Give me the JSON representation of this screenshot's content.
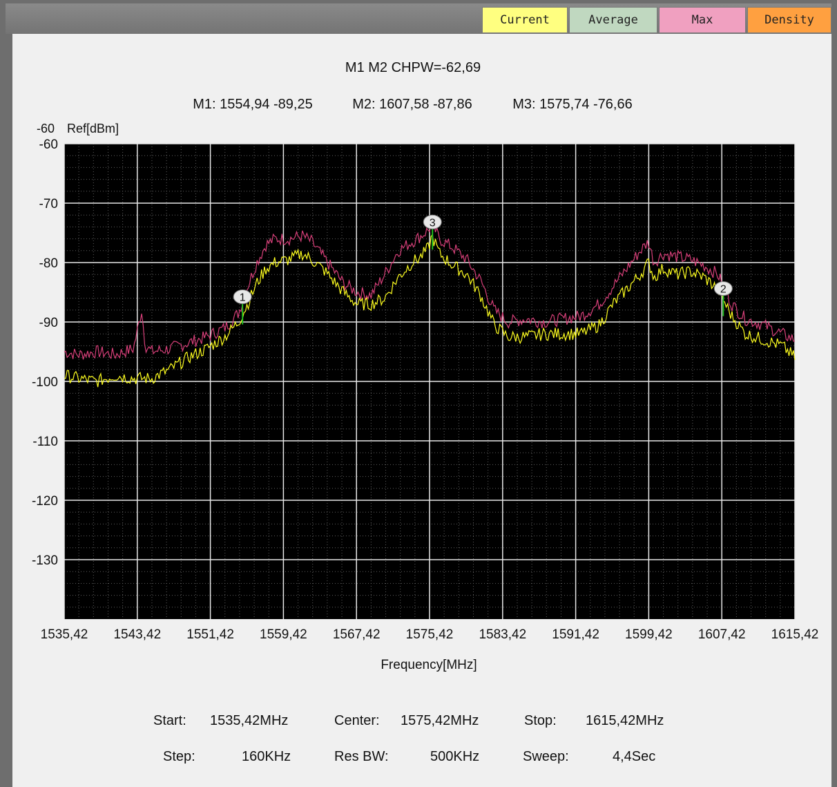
{
  "tabs": [
    {
      "label": "Current",
      "color": "#ffff80"
    },
    {
      "label": "Average",
      "color": "#c0d8c0"
    },
    {
      "label": "Max",
      "color": "#f0a0c0"
    },
    {
      "label": "Density",
      "color": "#ffa040"
    }
  ],
  "header": {
    "line1": "M1 M2  CHPW=-62,69",
    "m1": "M1: 1554,94 -89,25",
    "m2": "M2: 1607,58 -87,86",
    "m3": "M3: 1575,74 -76,66"
  },
  "ref": {
    "value": "-60",
    "label": "Ref[dBm]"
  },
  "settings": {
    "start_label": "Start:",
    "start_value": "1535,42MHz",
    "center_label": "Center:",
    "center_value": "1575,42MHz",
    "stop_label": "Stop:",
    "stop_value": "1615,42MHz",
    "step_label": "Step:",
    "step_value": "160KHz",
    "resbw_label": "Res BW:",
    "resbw_value": "500KHz",
    "sweep_label": "Sweep:",
    "sweep_value": "4,4Sec"
  },
  "chart_data": {
    "type": "line",
    "xlabel": "Frequency[MHz]",
    "ylabel": "Ref[dBm]",
    "xlim": [
      1535.42,
      1615.42
    ],
    "ylim": [
      -140,
      -60
    ],
    "x_ticks": [
      1535.42,
      1543.42,
      1551.42,
      1559.42,
      1567.42,
      1575.42,
      1583.42,
      1591.42,
      1599.42,
      1607.42,
      1615.42
    ],
    "x_tick_labels": [
      "1535,42",
      "1543,42",
      "1551,42",
      "1559,42",
      "1567,42",
      "1575,42",
      "1583,42",
      "1591,42",
      "1599,42",
      "1607,42",
      "1615,42"
    ],
    "y_ticks": [
      -60,
      -70,
      -80,
      -90,
      -100,
      -110,
      -120,
      -130
    ],
    "y_tick_labels": [
      "-60",
      "-70",
      "-80",
      "-90",
      "-100",
      "-110",
      "-120",
      "-130"
    ],
    "grid": true,
    "background": "#000000",
    "series": [
      {
        "color": "#d8407a",
        "x": [
          1535.42,
          1537,
          1539,
          1541,
          1543,
          1543.9,
          1544.3,
          1545,
          1547,
          1549,
          1551,
          1553,
          1554.5,
          1555.5,
          1556.5,
          1557.5,
          1558.5,
          1560,
          1561.5,
          1562.5,
          1564,
          1566,
          1567.5,
          1569,
          1570.5,
          1572,
          1573.5,
          1574.5,
          1575.3,
          1575.7,
          1576.5,
          1578,
          1579.5,
          1581,
          1582.5,
          1584,
          1586,
          1588,
          1590,
          1592,
          1594,
          1595.5,
          1597,
          1598.5,
          1599.4,
          1600,
          1601,
          1602.5,
          1604,
          1605.5,
          1607,
          1608.5,
          1610,
          1612,
          1614,
          1615.42
        ],
        "y": [
          -95,
          -95.5,
          -95,
          -95.5,
          -94.5,
          -88,
          -94,
          -95,
          -94.5,
          -93.5,
          -92.5,
          -91,
          -88.5,
          -84,
          -80,
          -77,
          -76,
          -76,
          -75.5,
          -76.5,
          -79.5,
          -83.5,
          -85,
          -85.5,
          -82,
          -78,
          -76.5,
          -75.5,
          -74.5,
          -73.5,
          -76,
          -77.5,
          -79.5,
          -83,
          -88,
          -90,
          -89.5,
          -90,
          -89.5,
          -89,
          -87,
          -84,
          -81,
          -78,
          -76.5,
          -80,
          -78.5,
          -79,
          -79.5,
          -80.5,
          -82,
          -87,
          -89.5,
          -90.5,
          -92,
          -93
        ]
      },
      {
        "color": "#ffff20",
        "x": [
          1535.42,
          1537,
          1539,
          1541,
          1543,
          1544,
          1545,
          1547,
          1549,
          1551,
          1553,
          1554.5,
          1555.5,
          1556.5,
          1557.5,
          1558.5,
          1560,
          1561.5,
          1562.5,
          1564,
          1566,
          1567.5,
          1569,
          1570.5,
          1572,
          1573.5,
          1574.5,
          1575.3,
          1575.7,
          1576.5,
          1578,
          1579.5,
          1581,
          1582.5,
          1584,
          1586,
          1588,
          1590,
          1592,
          1594,
          1595.5,
          1597,
          1598.5,
          1599.4,
          1600,
          1601,
          1602.5,
          1604,
          1605.5,
          1607,
          1608.5,
          1610,
          1612,
          1614,
          1615.42
        ],
        "y": [
          -99,
          -99.5,
          -100,
          -99,
          -99.5,
          -99.5,
          -99.5,
          -98,
          -96,
          -94.5,
          -92.5,
          -90,
          -87,
          -83.5,
          -81,
          -80,
          -79.5,
          -78.5,
          -79.5,
          -81.5,
          -85,
          -87,
          -87,
          -86,
          -82.5,
          -80,
          -79,
          -77.5,
          -75.5,
          -78.5,
          -80.5,
          -82,
          -85.5,
          -90.5,
          -92.5,
          -92.5,
          -92,
          -92,
          -92,
          -90.5,
          -87,
          -84.5,
          -82,
          -80,
          -82.5,
          -81,
          -82,
          -81.5,
          -82.5,
          -84.5,
          -89,
          -92,
          -93,
          -94,
          -96
        ]
      }
    ],
    "markers": [
      {
        "label": "1",
        "x": 1554.94,
        "y": -89.25
      },
      {
        "label": "2",
        "x": 1607.58,
        "y": -87.86
      },
      {
        "label": "3",
        "x": 1575.74,
        "y": -76.66
      }
    ]
  }
}
